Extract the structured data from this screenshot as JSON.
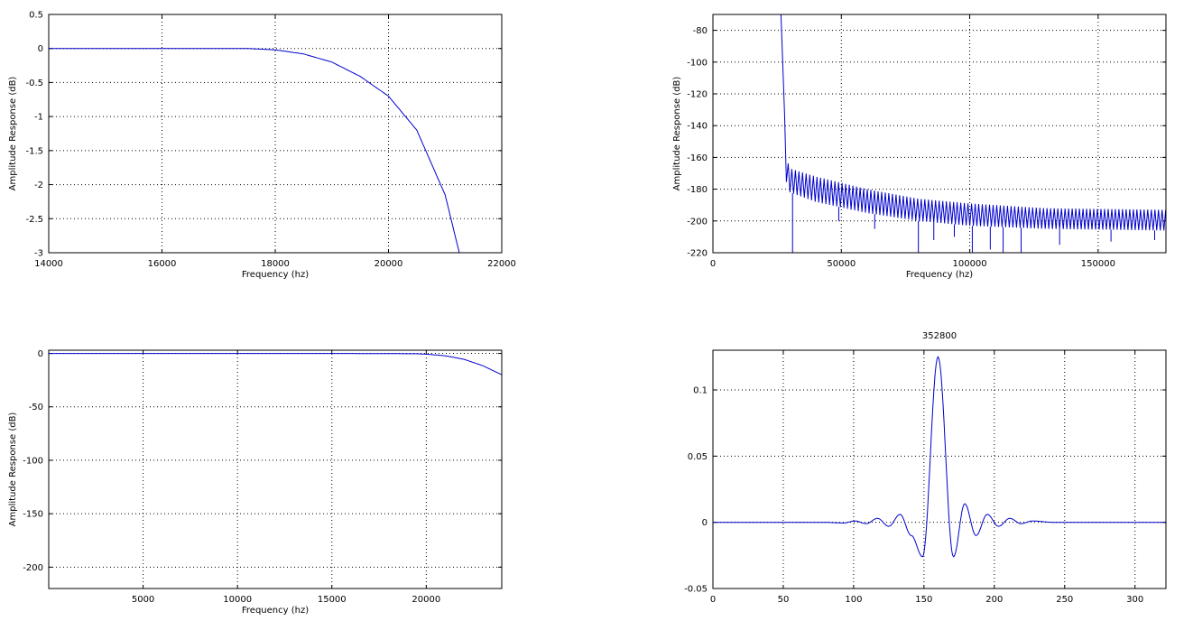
{
  "chart_data": [
    {
      "type": "line",
      "panel": "passband-detail",
      "title": "",
      "xlabel": "Frequency (hz)",
      "ylabel": "Amplitude Response (dB)",
      "xlim": [
        14000,
        22000
      ],
      "ylim": [
        -3,
        0.5
      ],
      "xticks": [
        14000,
        16000,
        18000,
        20000,
        22000
      ],
      "yticks": [
        0.5,
        0,
        -0.5,
        -1,
        -1.5,
        -2,
        -2.5,
        -3
      ],
      "xtick_labels": [
        "14000",
        "16000",
        "18000",
        "20000",
        "22000"
      ],
      "ytick_labels": [
        "0.5",
        "0",
        "-0.5",
        "-1",
        "-1.5",
        "-2",
        "-2.5",
        "-3"
      ],
      "grid": true,
      "series": [
        {
          "color": "#0000cc",
          "x": [
            14000,
            16000,
            17500,
            18000,
            18500,
            19000,
            19500,
            20000,
            20500,
            21000,
            21250
          ],
          "y": [
            0,
            0,
            0,
            -0.02,
            -0.08,
            -0.2,
            -0.41,
            -0.7,
            -1.2,
            -2.15,
            -3.0
          ]
        }
      ]
    },
    {
      "type": "line",
      "panel": "stopband",
      "title": "",
      "xlabel": "Frequency (hz)",
      "ylabel": "Amplitude Response (dB)",
      "xlim": [
        0,
        176400
      ],
      "ylim": [
        -220,
        -70
      ],
      "xticks": [
        0,
        50000,
        100000,
        150000
      ],
      "yticks": [
        -80,
        -100,
        -120,
        -140,
        -160,
        -180,
        -200,
        -220
      ],
      "xtick_labels": [
        "0",
        "50000",
        "100000",
        "150000"
      ],
      "ytick_labels": [
        "-80",
        "-100",
        "-120",
        "-140",
        "-160",
        "-180",
        "-200",
        "-220"
      ],
      "grid": true,
      "series": [
        {
          "color": "#0000cc",
          "envelope_x": [
            26500,
            27500,
            28500,
            30000,
            40000,
            60000,
            80000,
            100000,
            130000,
            176400
          ],
          "envelope_top_y": [
            -70,
            -115,
            -160,
            -167,
            -172,
            -180,
            -186,
            -189,
            -192,
            -193
          ],
          "envelope_bottom_y": [
            -70,
            -115,
            -175,
            -182,
            -188,
            -195,
            -200,
            -203,
            -205,
            -206
          ],
          "deep_notch_x": [
            31000,
            49000,
            63000,
            80000,
            86000,
            94000,
            101000,
            108000,
            113000,
            120000,
            135000,
            155000,
            172000
          ],
          "deep_notch_y": [
            -220,
            -200,
            -205,
            -220,
            -212,
            -210,
            -220,
            -218,
            -220,
            -220,
            -215,
            -213,
            -212
          ]
        }
      ]
    },
    {
      "type": "line",
      "panel": "full-band",
      "title": "",
      "xlabel": "Frequency (hz)",
      "ylabel": "Amplitude Response (dB)",
      "xlim": [
        0,
        24000
      ],
      "ylim": [
        -220,
        3
      ],
      "xticks": [
        5000,
        10000,
        15000,
        20000
      ],
      "yticks": [
        0,
        -50,
        -100,
        -150,
        -200
      ],
      "xtick_labels": [
        "5000",
        "10000",
        "15000",
        "20000"
      ],
      "ytick_labels": [
        "0",
        "-50",
        "-100",
        "-150",
        "-200"
      ],
      "grid": true,
      "series": [
        {
          "color": "#0000cc",
          "x": [
            0,
            5000,
            10000,
            15000,
            19500,
            20000,
            21000,
            22000,
            23000,
            24000
          ],
          "y": [
            0,
            0,
            0,
            0,
            -0.3,
            -0.7,
            -2.2,
            -5.5,
            -11.5,
            -20
          ]
        }
      ]
    },
    {
      "type": "line",
      "panel": "impulse-response",
      "title": "352800",
      "xlabel": "",
      "ylabel": "",
      "xlim": [
        0,
        322
      ],
      "ylim": [
        -0.05,
        0.13
      ],
      "xticks": [
        0,
        50,
        100,
        150,
        200,
        250,
        300
      ],
      "yticks": [
        0.1,
        0.05,
        0,
        -0.05
      ],
      "xtick_labels": [
        "0",
        "50",
        "100",
        "150",
        "200",
        "250",
        "300"
      ],
      "ytick_labels": [
        "0.1",
        "0.05",
        "0",
        "-0.05"
      ],
      "grid": true,
      "series": [
        {
          "color": "#0000cc",
          "center": 160,
          "peak": 0.125,
          "x_extrema": [
            78,
            93,
            101,
            109,
            117,
            125,
            133,
            141,
            149,
            160,
            171,
            179,
            187,
            195,
            203,
            211,
            219,
            227,
            242
          ],
          "y_extrema": [
            0,
            -0.0005,
            0.001,
            -0.001,
            0.003,
            -0.003,
            0.006,
            -0.01,
            -0.026,
            0.125,
            -0.026,
            0.014,
            -0.01,
            0.006,
            -0.003,
            0.003,
            -0.001,
            0.001,
            0
          ]
        }
      ]
    }
  ]
}
